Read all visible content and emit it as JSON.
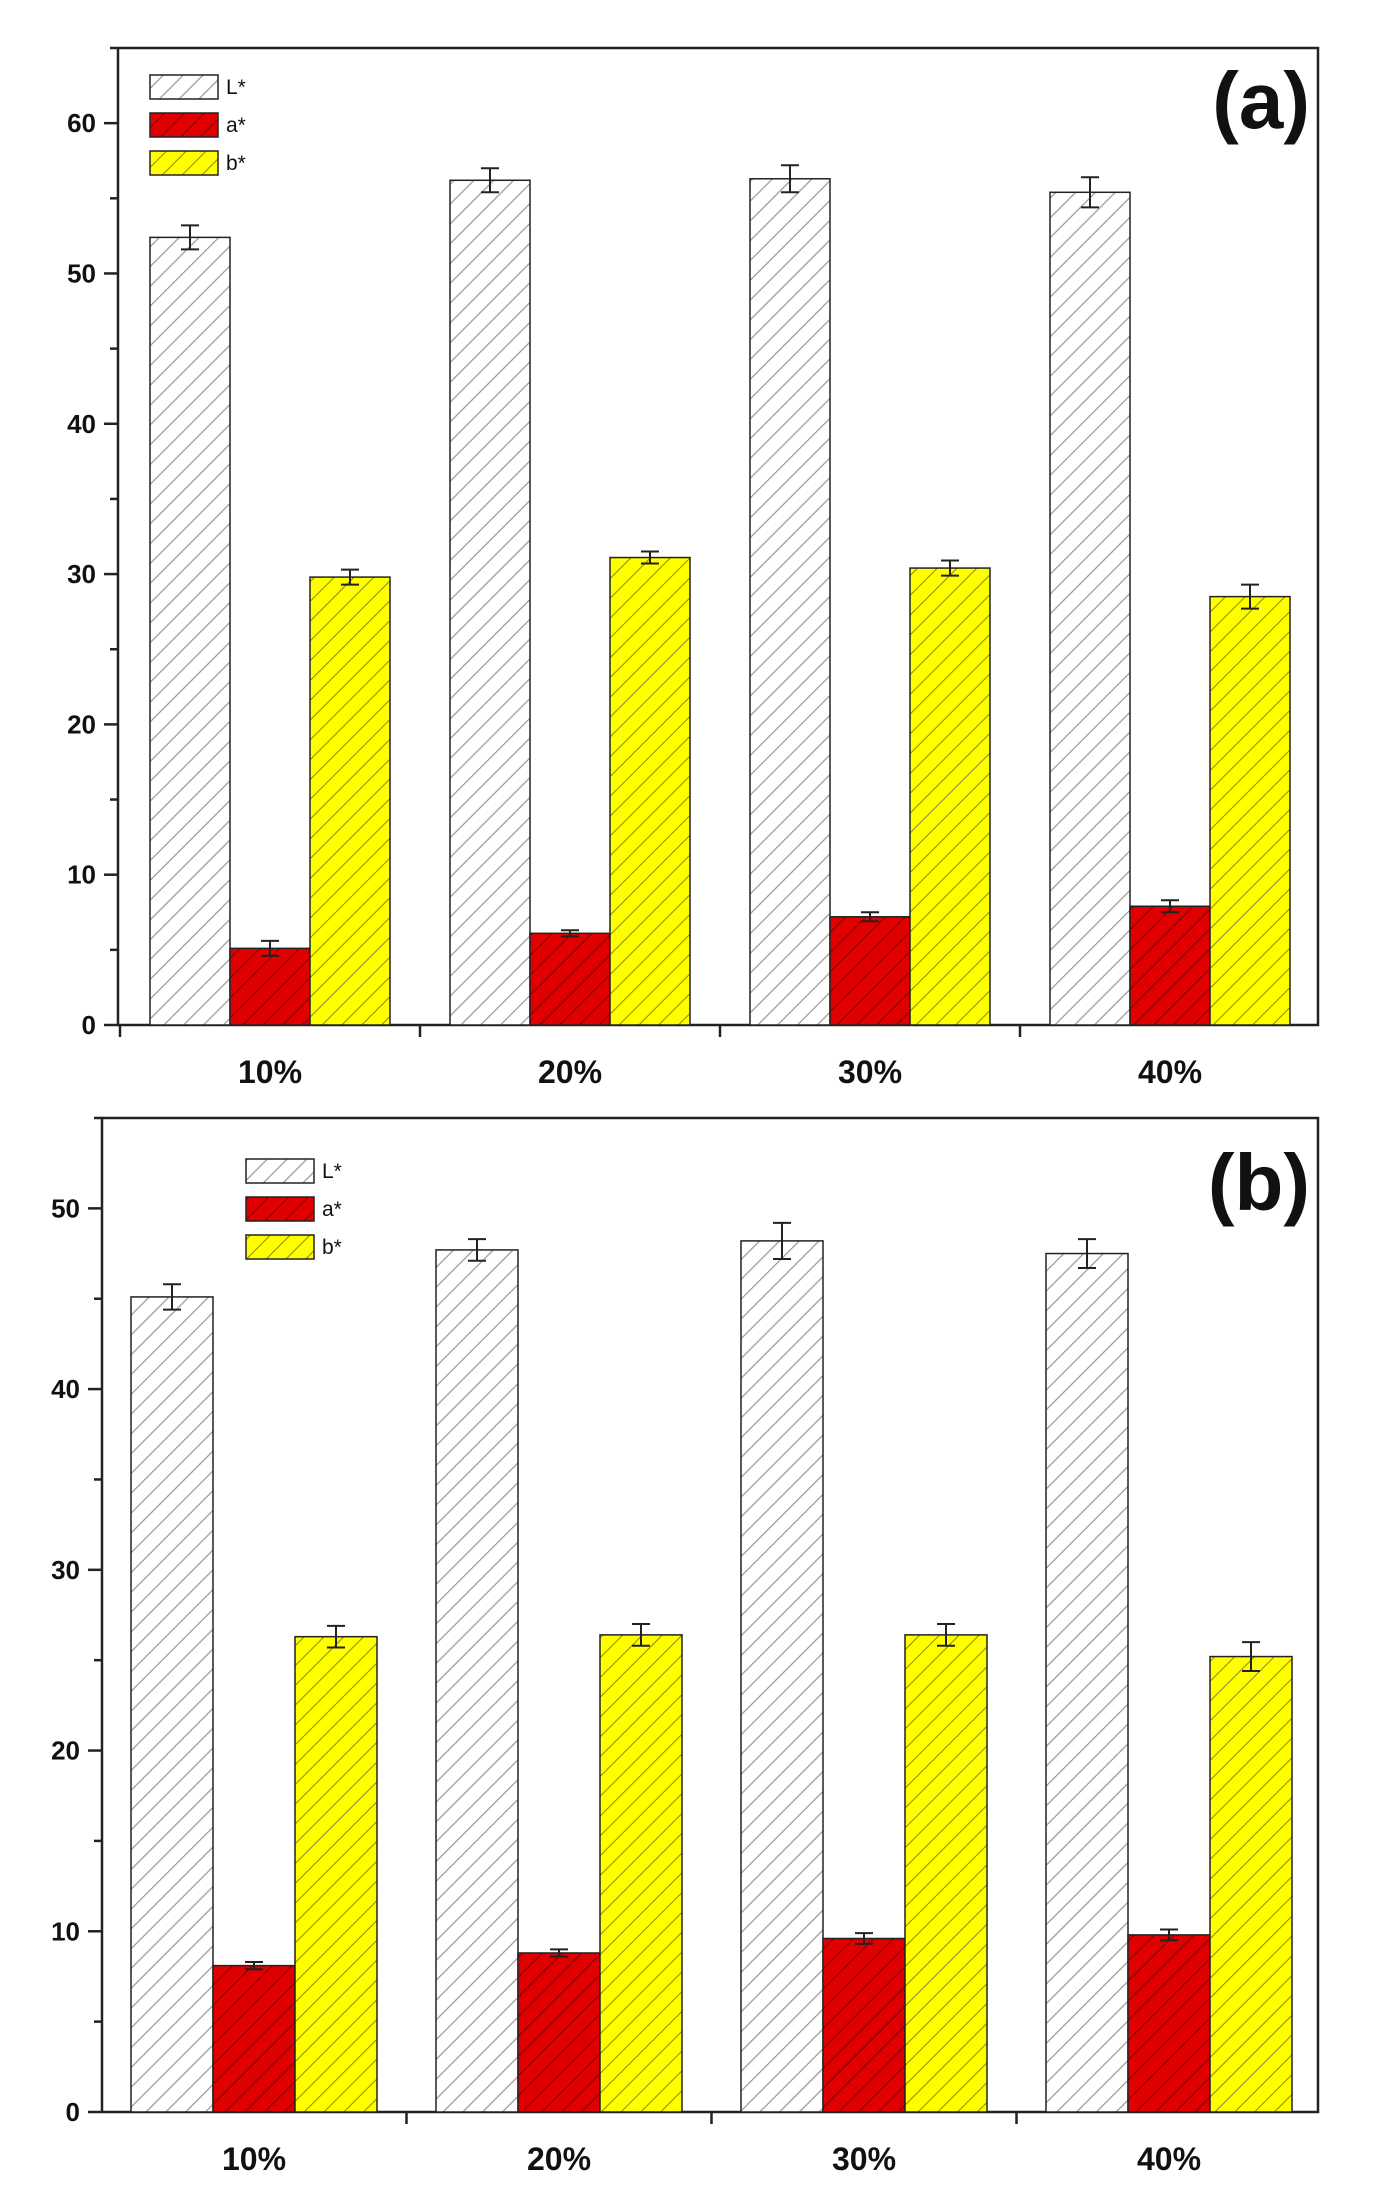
{
  "chart_data": [
    {
      "type": "bar",
      "panel_label": "(a)",
      "categories": [
        "10%",
        "20%",
        "30%",
        "40%"
      ],
      "series": [
        {
          "name": "L*",
          "values": [
            52.4,
            56.2,
            56.3,
            55.4
          ],
          "errors": [
            0.8,
            0.8,
            0.9,
            1.0
          ],
          "fill": "#ffffff",
          "hatch": "#9a9a9a"
        },
        {
          "name": "a*",
          "values": [
            5.1,
            6.1,
            7.2,
            7.9
          ],
          "errors": [
            0.5,
            0.2,
            0.3,
            0.4
          ],
          "fill": "#e00000",
          "hatch": "#7a0000"
        },
        {
          "name": "b*",
          "values": [
            29.8,
            31.1,
            30.4,
            28.5
          ],
          "errors": [
            0.5,
            0.4,
            0.5,
            0.8
          ],
          "fill": "#ffff00",
          "hatch": "#8a8a00"
        }
      ],
      "ylim": [
        0,
        65
      ],
      "yticks": [
        0,
        10,
        20,
        30,
        40,
        50,
        60
      ],
      "ytick_labels": [
        "0",
        "10",
        "20",
        "30",
        "40",
        "50",
        "60"
      ],
      "minor_step": 5,
      "legend_position": "top-left",
      "title": "",
      "xlabel": "",
      "ylabel": ""
    },
    {
      "type": "bar",
      "panel_label": "(b)",
      "categories": [
        "10%",
        "20%",
        "30%",
        "40%"
      ],
      "series": [
        {
          "name": "L*",
          "values": [
            45.1,
            47.7,
            48.2,
            47.5
          ],
          "errors": [
            0.7,
            0.6,
            1.0,
            0.8
          ],
          "fill": "#ffffff",
          "hatch": "#9a9a9a"
        },
        {
          "name": "a*",
          "values": [
            8.1,
            8.8,
            9.6,
            9.8
          ],
          "errors": [
            0.2,
            0.2,
            0.3,
            0.3
          ],
          "fill": "#e00000",
          "hatch": "#7a0000"
        },
        {
          "name": "b*",
          "values": [
            26.3,
            26.4,
            26.4,
            25.2
          ],
          "errors": [
            0.6,
            0.6,
            0.6,
            0.8
          ],
          "fill": "#ffff00",
          "hatch": "#8a8a00"
        }
      ],
      "ylim": [
        0,
        55
      ],
      "yticks": [
        0,
        10,
        20,
        30,
        40,
        50
      ],
      "ytick_labels": [
        "0",
        "10",
        "20",
        "30",
        "40",
        "50"
      ],
      "minor_step": 5,
      "legend_position": "top-left",
      "title": "",
      "xlabel": "",
      "ylabel": ""
    }
  ]
}
